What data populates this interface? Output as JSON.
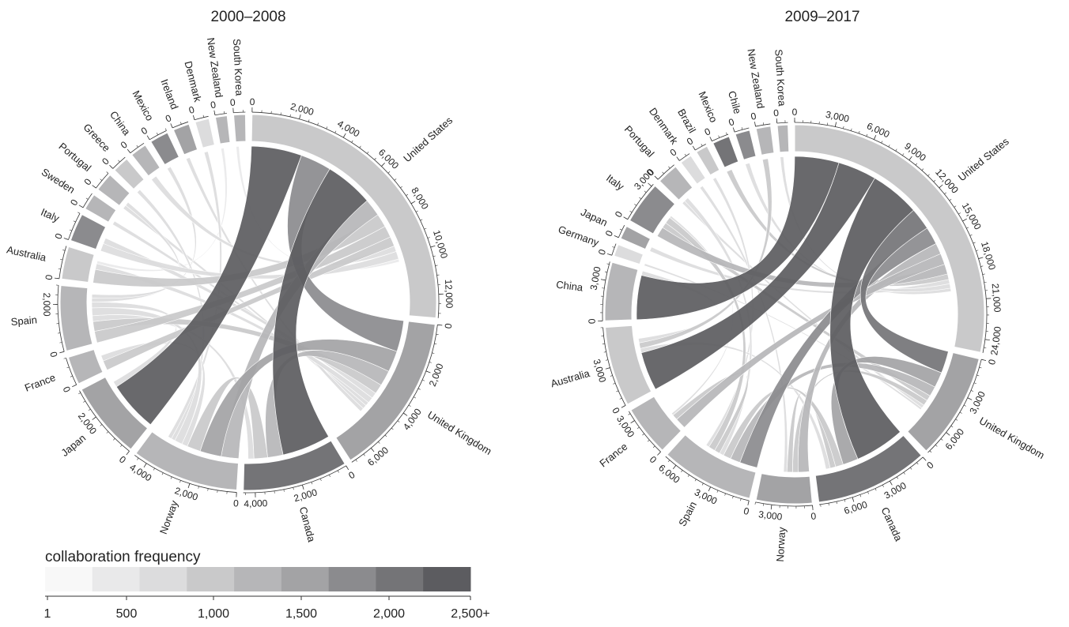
{
  "chart_data": [
    {
      "type": "chord",
      "title": "2000–2008",
      "sectors": [
        {
          "name": "United States",
          "total": 13000,
          "shade": 3,
          "ticks": [
            0,
            2000,
            4000,
            6000,
            8000,
            10000,
            12000
          ]
        },
        {
          "name": "United Kingdom",
          "total": 7000,
          "shade": 5,
          "ticks": [
            0,
            2000,
            4000,
            6000
          ]
        },
        {
          "name": "Canada",
          "total": 4500,
          "shade": 7,
          "ticks": [
            0,
            2000,
            4000
          ]
        },
        {
          "name": "Norway",
          "total": 4600,
          "shade": 4,
          "ticks": [
            0,
            2000,
            4000
          ]
        },
        {
          "name": "Japan",
          "total": 3300,
          "shade": 5,
          "ticks": [
            0,
            2000
          ]
        },
        {
          "name": "France",
          "total": 1200,
          "shade": 4,
          "ticks": [
            0
          ]
        },
        {
          "name": "Spain",
          "total": 2800,
          "shade": 4,
          "ticks": [
            0,
            2000
          ]
        },
        {
          "name": "Australia",
          "total": 1400,
          "shade": 3,
          "ticks": [
            0
          ]
        },
        {
          "name": "Italy",
          "total": 1200,
          "shade": 6,
          "ticks": [
            0
          ]
        },
        {
          "name": "Sweden",
          "total": 700,
          "shade": 4,
          "ticks": [
            0
          ]
        },
        {
          "name": "Portugal",
          "total": 800,
          "shade": 4,
          "ticks": [
            0
          ]
        },
        {
          "name": "Greece",
          "total": 700,
          "shade": 3,
          "ticks": [
            0
          ]
        },
        {
          "name": "China",
          "total": 700,
          "shade": 4,
          "ticks": [
            0
          ]
        },
        {
          "name": "Mexico",
          "total": 800,
          "shade": 6,
          "ticks": [
            0
          ]
        },
        {
          "name": "Ireland",
          "total": 700,
          "shade": 5,
          "ticks": [
            0
          ]
        },
        {
          "name": "Denmark",
          "total": 600,
          "shade": 2,
          "ticks": [
            0
          ]
        },
        {
          "name": "New Zealand",
          "total": 500,
          "shade": 4,
          "ticks": [
            0
          ]
        },
        {
          "name": "South Korea",
          "total": 500,
          "shade": 4,
          "ticks": [
            0
          ]
        }
      ],
      "links": [
        [
          "United States",
          "Japan",
          2600
        ],
        [
          "United States",
          "United Kingdom",
          1600
        ],
        [
          "United States",
          "Canada",
          2500
        ],
        [
          "United States",
          "Norway",
          900
        ],
        [
          "United States",
          "Australia",
          700
        ],
        [
          "United States",
          "Spain",
          600
        ],
        [
          "United States",
          "France",
          500
        ],
        [
          "United States",
          "China",
          300
        ],
        [
          "United States",
          "Italy",
          400
        ],
        [
          "United Kingdom",
          "Norway",
          1100
        ],
        [
          "United Kingdom",
          "Canada",
          800
        ],
        [
          "United Kingdom",
          "Spain",
          500
        ],
        [
          "United Kingdom",
          "Italy",
          300
        ],
        [
          "United Kingdom",
          "Australia",
          300
        ],
        [
          "United Kingdom",
          "Sweden",
          200
        ],
        [
          "United Kingdom",
          "Portugal",
          200
        ],
        [
          "United Kingdom",
          "Ireland",
          200
        ],
        [
          "Canada",
          "Norway",
          700
        ],
        [
          "Canada",
          "Spain",
          300
        ],
        [
          "Norway",
          "France",
          300
        ],
        [
          "Norway",
          "Spain",
          400
        ],
        [
          "Japan",
          "Spain",
          300
        ],
        [
          "Spain",
          "Mexico",
          200
        ],
        [
          "Spain",
          "Portugal",
          200
        ],
        [
          "Greece",
          "Norway",
          200
        ],
        [
          "Denmark",
          "Norway",
          200
        ],
        [
          "New Zealand",
          "Australia",
          150
        ],
        [
          "South Korea",
          "United States",
          150
        ]
      ]
    },
    {
      "type": "chord",
      "title": "2009–2017",
      "sectors": [
        {
          "name": "United States",
          "total": 25000,
          "shade": 3,
          "ticks": [
            0,
            3000,
            6000,
            9000,
            12000,
            15000,
            18000,
            21000,
            24000
          ]
        },
        {
          "name": "United Kingdom",
          "total": 8000,
          "shade": 5,
          "ticks": [
            0,
            3000,
            6000
          ]
        },
        {
          "name": "Canada",
          "total": 8500,
          "shade": 7,
          "ticks": [
            0,
            3000,
            6000
          ]
        },
        {
          "name": "Norway",
          "total": 4200,
          "shade": 5,
          "ticks": [
            0,
            3000
          ]
        },
        {
          "name": "Spain",
          "total": 7000,
          "shade": 4,
          "ticks": [
            0,
            3000,
            6000
          ]
        },
        {
          "name": "France",
          "total": 3800,
          "shade": 4,
          "ticks": [
            0,
            3000
          ]
        },
        {
          "name": "Australia",
          "total": 6000,
          "shade": 3,
          "ticks": [
            0,
            3000
          ]
        },
        {
          "name": "China",
          "total": 4400,
          "shade": 4,
          "ticks": [
            0,
            3000
          ]
        },
        {
          "name": "Germany",
          "total": 900,
          "shade": 2,
          "ticks": [
            0
          ]
        },
        {
          "name": "Japan",
          "total": 1000,
          "shade": 5,
          "ticks": [
            0
          ]
        },
        {
          "name": "Italy",
          "total": 3200,
          "shade": 6,
          "ticks": [
            0,
            3000
          ]
        },
        {
          "name": "Portugal",
          "total": 1600,
          "shade": 4,
          "ticks": [
            0
          ]
        },
        {
          "name": "Denmark",
          "total": 900,
          "shade": 2,
          "ticks": [
            0
          ]
        },
        {
          "name": "Brazil",
          "total": 900,
          "shade": 3,
          "ticks": [
            0
          ]
        },
        {
          "name": "Mexico",
          "total": 1300,
          "shade": 7,
          "ticks": [
            0
          ]
        },
        {
          "name": "Chile",
          "total": 1100,
          "shade": 6,
          "ticks": [
            0
          ]
        },
        {
          "name": "New Zealand",
          "total": 1100,
          "shade": 4,
          "ticks": [
            0
          ]
        },
        {
          "name": "South Korea",
          "total": 800,
          "shade": 4,
          "ticks": [
            0
          ]
        }
      ],
      "links": [
        [
          "United States",
          "China",
          4000
        ],
        [
          "United States",
          "Australia",
          3500
        ],
        [
          "United States",
          "Canada",
          4500
        ],
        [
          "United States",
          "United Kingdom",
          2000
        ],
        [
          "United States",
          "Spain",
          1600
        ],
        [
          "United States",
          "Norway",
          1000
        ],
        [
          "United States",
          "France",
          1000
        ],
        [
          "United States",
          "Italy",
          900
        ],
        [
          "United States",
          "Mexico",
          500
        ],
        [
          "United States",
          "Japan",
          400
        ],
        [
          "United States",
          "Chile",
          400
        ],
        [
          "United Kingdom",
          "Canada",
          1400
        ],
        [
          "United Kingdom",
          "Spain",
          900
        ],
        [
          "United Kingdom",
          "Italy",
          500
        ],
        [
          "United Kingdom",
          "Norway",
          500
        ],
        [
          "United Kingdom",
          "Portugal",
          300
        ],
        [
          "Canada",
          "Spain",
          700
        ],
        [
          "Canada",
          "Norway",
          500
        ],
        [
          "Canada",
          "Australia",
          400
        ],
        [
          "Spain",
          "Portugal",
          400
        ],
        [
          "Spain",
          "France",
          500
        ],
        [
          "Spain",
          "Italy",
          600
        ],
        [
          "Norway",
          "Denmark",
          300
        ],
        [
          "Australia",
          "New Zealand",
          500
        ],
        [
          "Australia",
          "China",
          400
        ],
        [
          "Brazil",
          "Spain",
          300
        ],
        [
          "Germany",
          "United Kingdom",
          200
        ],
        [
          "South Korea",
          "United States",
          300
        ],
        [
          "France",
          "Italy",
          200
        ]
      ]
    }
  ],
  "legend": {
    "title": "collaboration frequency",
    "colors": [
      "#f8f8f8",
      "#e9e9ea",
      "#dcdcdd",
      "#c9c9ca",
      "#b6b6b8",
      "#a3a3a5",
      "#8b8b8e",
      "#747477",
      "#5c5c60"
    ],
    "ticks": [
      "1",
      "500",
      "1,000",
      "1,500",
      "2,000",
      "2,500+"
    ]
  }
}
